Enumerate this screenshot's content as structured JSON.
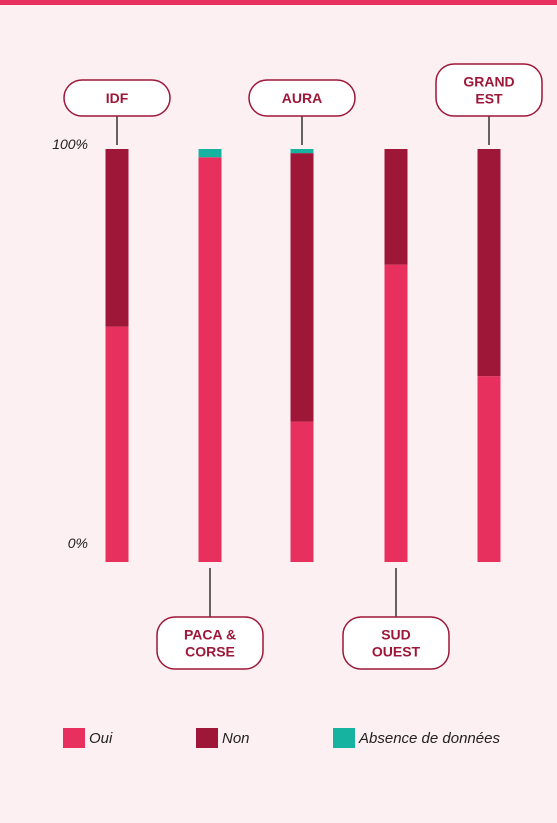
{
  "chart_data": {
    "type": "bar",
    "stacked": true,
    "categories": [
      "IDF",
      "PACA & CORSE",
      "AURA",
      "SUD OUEST",
      "GRAND EST"
    ],
    "label_lines": [
      [
        "IDF"
      ],
      [
        "PACA &",
        "CORSE"
      ],
      [
        "AURA"
      ],
      [
        "SUD",
        "OUEST"
      ],
      [
        "GRAND",
        "EST"
      ]
    ],
    "label_positions": [
      "top",
      "bottom",
      "top",
      "bottom",
      "top"
    ],
    "series": [
      {
        "name": "Oui",
        "values": [
          57,
          98,
          34,
          72,
          45
        ]
      },
      {
        "name": "Non",
        "values": [
          43,
          0,
          65,
          28,
          55
        ]
      },
      {
        "name": "Absence de données",
        "values": [
          0,
          2,
          1,
          0,
          0
        ]
      }
    ],
    "colors": [
      "#e8305f",
      "#9e1738",
      "#16b3a1"
    ],
    "axis_labels": {
      "top": "100%",
      "bottom": "0%"
    },
    "ylim": [
      0,
      100
    ],
    "legend_position": "bottom"
  }
}
